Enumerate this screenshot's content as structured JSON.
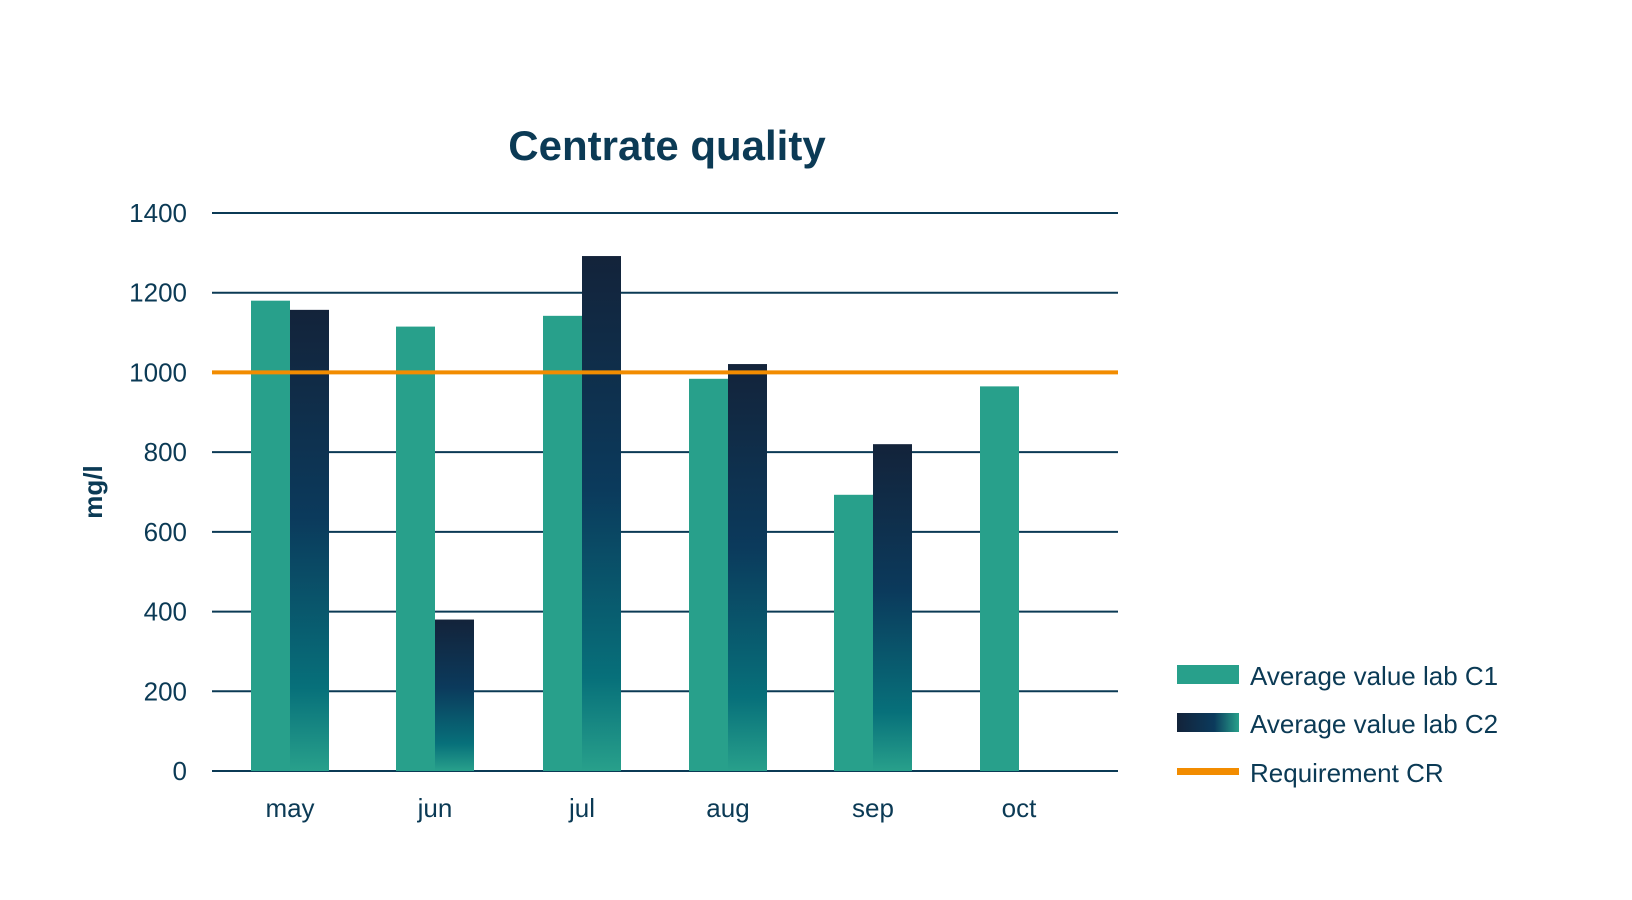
{
  "chart_data": {
    "type": "bar",
    "title": "Centrate quality",
    "xlabel": "",
    "ylabel": "mg/l",
    "ylim": [
      0,
      1400
    ],
    "yticks": [
      0,
      200,
      400,
      600,
      800,
      1000,
      1200,
      1400
    ],
    "grid": true,
    "legend_placement": "bottom-right",
    "categories": [
      "may",
      "jun",
      "jul",
      "aug",
      "sep",
      "oct"
    ],
    "series": [
      {
        "name": "Average value lab C1",
        "type": "bar",
        "color": "#28a08b",
        "values": [
          1180,
          1115,
          1142,
          984,
          693,
          965
        ]
      },
      {
        "name": "Average value lab C2",
        "type": "bar",
        "color": "#0b3a5c",
        "gradient": [
          "#13233a",
          "#0b3a5c",
          "#07707a",
          "#28a08b"
        ],
        "values": [
          1157,
          380,
          1292,
          1021,
          820,
          null
        ]
      },
      {
        "name": "Requirement CR",
        "type": "line",
        "color": "#f28c00",
        "value": 1000
      }
    ]
  }
}
